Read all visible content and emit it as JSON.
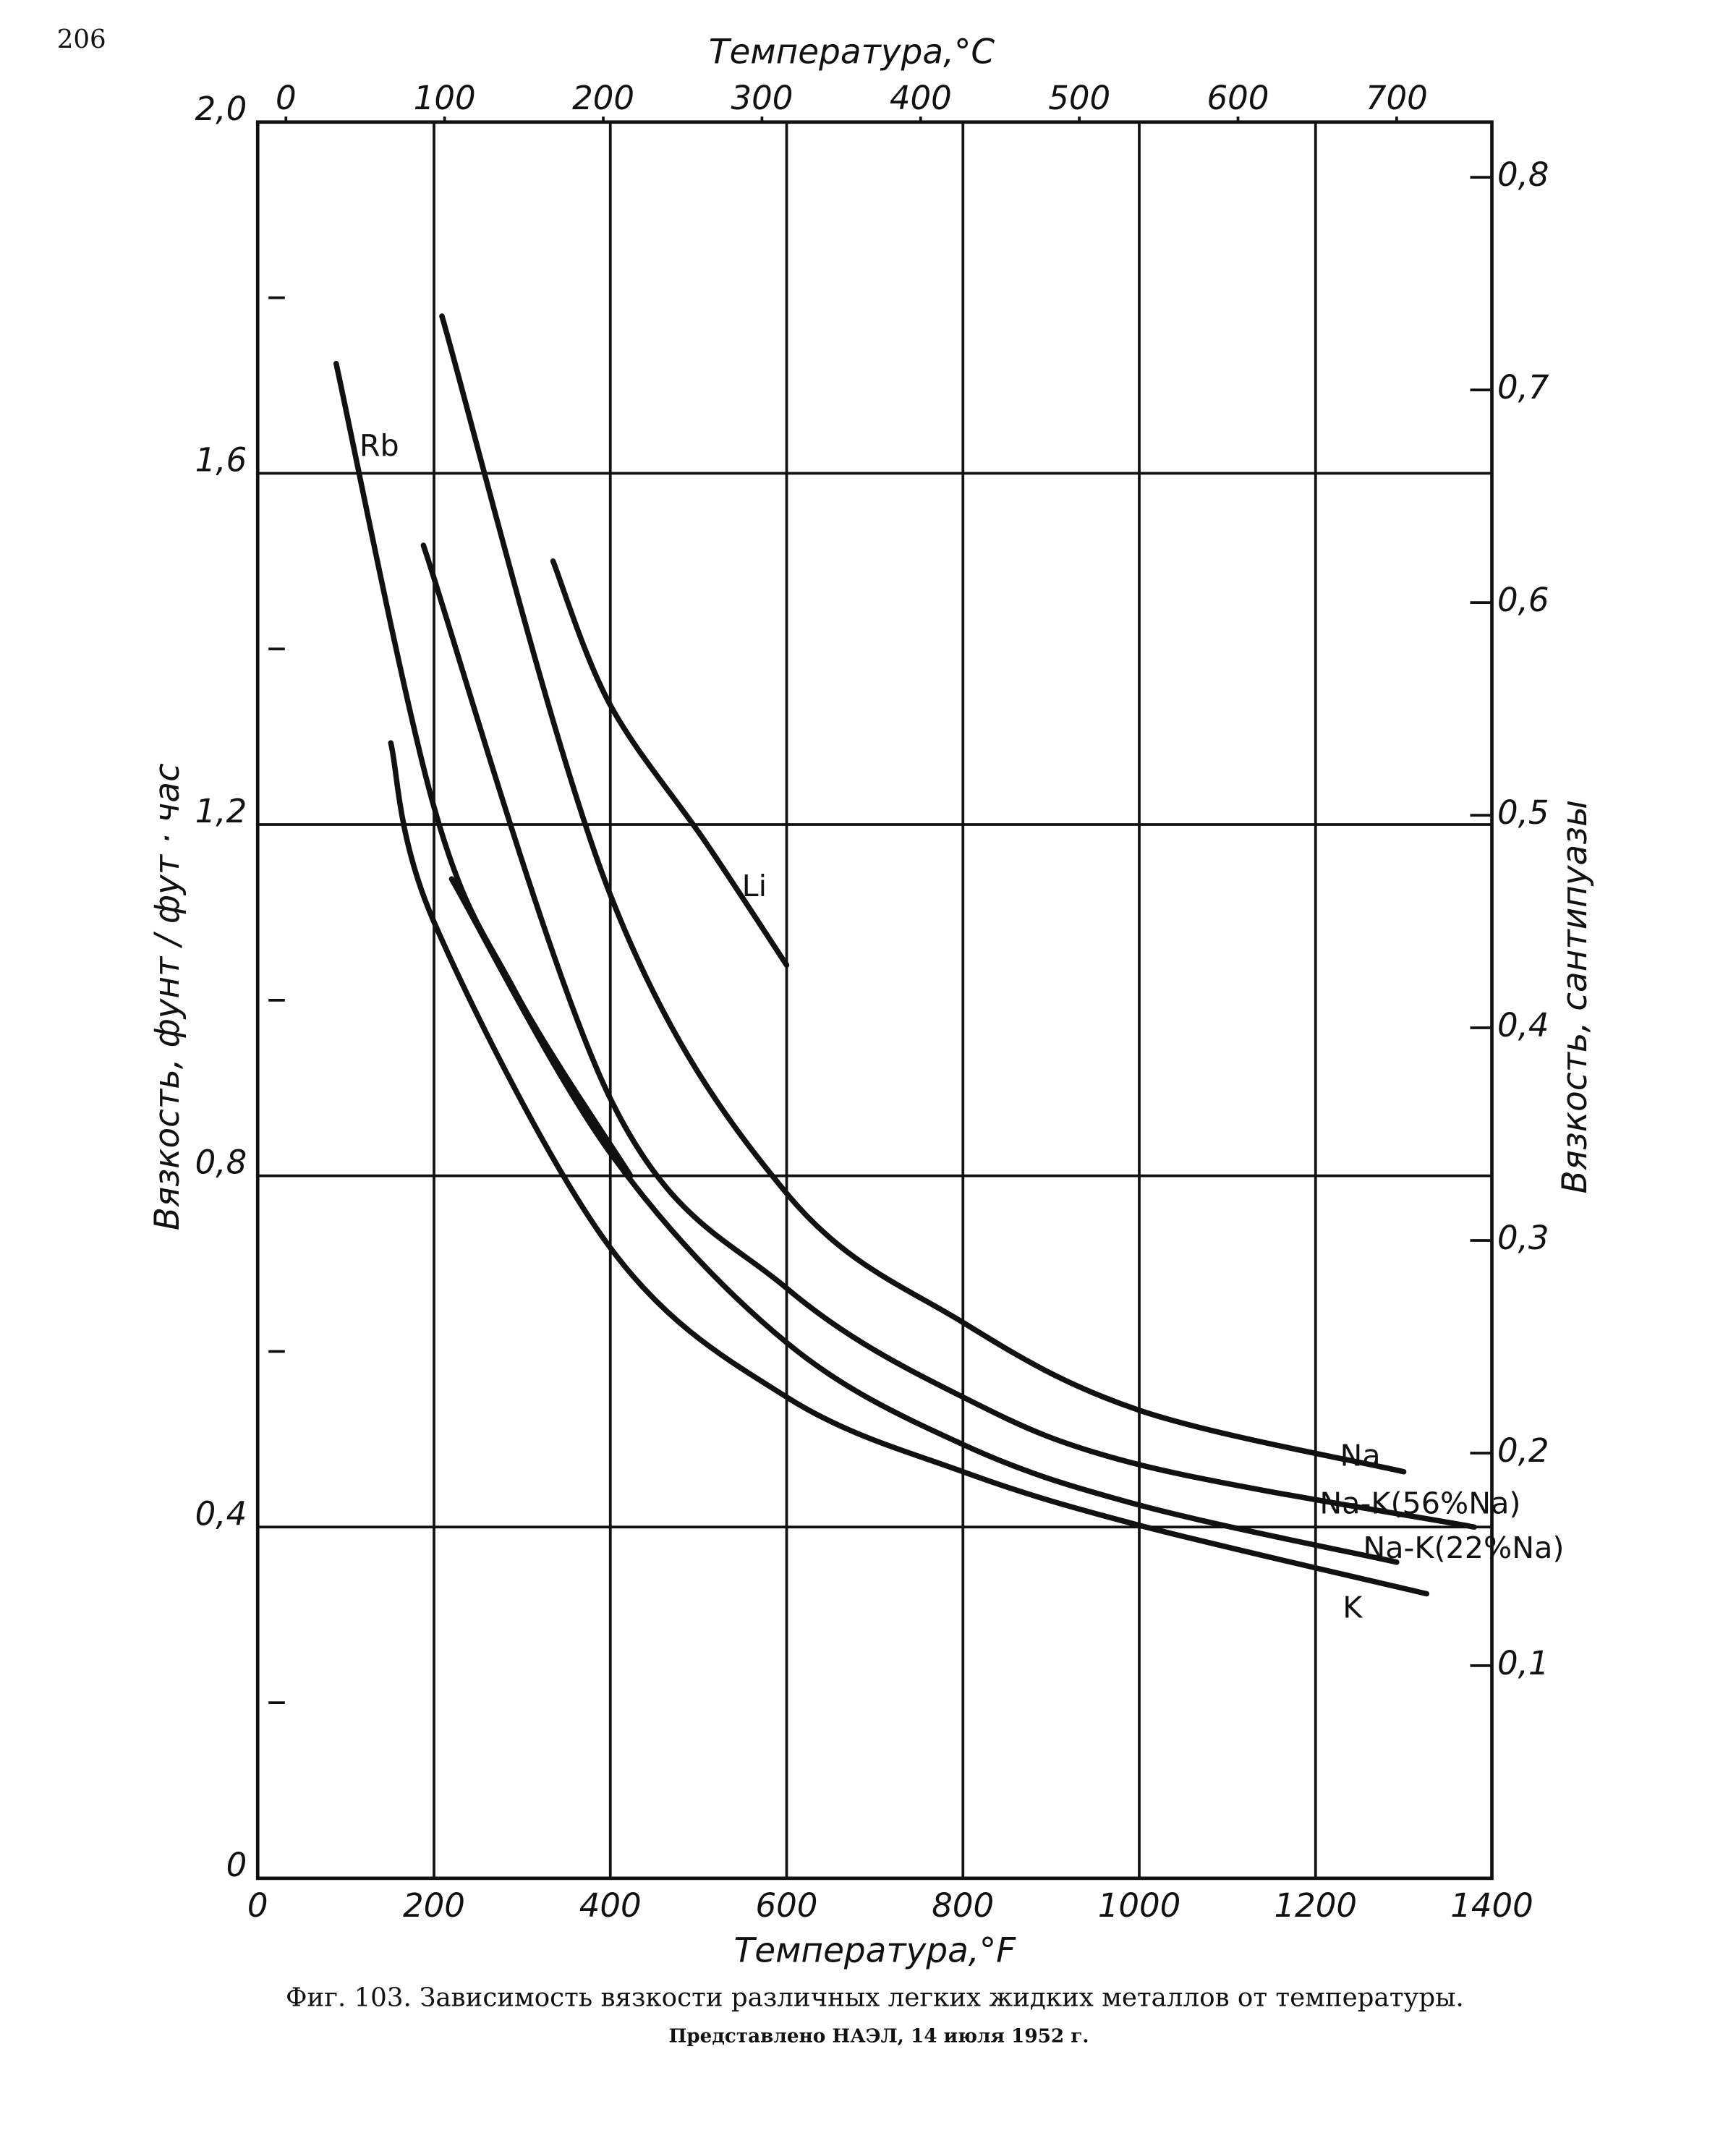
{
  "page_number": "206",
  "chart_data": {
    "type": "line",
    "x2_label": "Температура,°C",
    "x_label": "Температура,°F",
    "y_label": "Вязкость, фунт / фут · час",
    "y2_label": "Вязкость, сантипуазы",
    "caption": "Фиг. 103. Зависимость вязкости различных легких жидких металлов от температуры.",
    "note": "Представлено НАЭЛ, 14 июля 1952 г.",
    "xlim": [
      0,
      1400
    ],
    "xticks": [
      0,
      200,
      400,
      600,
      800,
      1000,
      1200,
      1400
    ],
    "x2lim": [
      -17.8,
      760
    ],
    "x2ticks": [
      0,
      100,
      200,
      300,
      400,
      500,
      600,
      700
    ],
    "ylim": [
      0,
      2.0
    ],
    "yticks": [
      0,
      {
        "value": 0.4,
        "label": "0,4"
      },
      {
        "value": 0.8,
        "label": "0,8"
      },
      {
        "value": 1.2,
        "label": "1,2"
      },
      {
        "value": 1.6,
        "label": "1,6"
      },
      {
        "value": 2.0,
        "label": "2,0"
      }
    ],
    "yminorticks": [
      0.2,
      0.6,
      1.0,
      1.4,
      1.8
    ],
    "y2lim": [
      0,
      0.826
    ],
    "y2ticks": [
      {
        "value": 0.1,
        "label": "0,1"
      },
      {
        "value": 0.2,
        "label": "0,2"
      },
      {
        "value": 0.3,
        "label": "0,3"
      },
      {
        "value": 0.4,
        "label": "0,4"
      },
      {
        "value": 0.5,
        "label": "0,5"
      },
      {
        "value": 0.6,
        "label": "0,6"
      },
      {
        "value": 0.7,
        "label": "0,7"
      },
      {
        "value": 0.8,
        "label": "0,8"
      }
    ],
    "grid": true,
    "series": [
      {
        "name": "Rb",
        "color": "#111111",
        "x": [
          89,
          200,
          292,
          423
        ],
        "values": [
          1.725,
          1.22,
          1.01,
          0.8
        ]
      },
      {
        "name": "Li",
        "color": "#111111",
        "x": [
          335,
          400,
          508,
          600
        ],
        "values": [
          1.5,
          1.336,
          1.18,
          1.04
        ]
      },
      {
        "name": "Na",
        "color": "#111111",
        "x": [
          209,
          400,
          600,
          800,
          1000,
          1300
        ],
        "values": [
          1.779,
          1.12,
          0.78,
          0.633,
          0.533,
          0.463
        ]
      },
      {
        "name": "Na-K(56%Na)",
        "color": "#111111",
        "x": [
          188,
          400,
          600,
          800,
          1000,
          1380
        ],
        "values": [
          1.518,
          0.888,
          0.672,
          0.548,
          0.471,
          0.4
        ]
      },
      {
        "name": "Na-K(22%Na)",
        "color": "#111111",
        "x": [
          220,
          400,
          600,
          800,
          1000,
          1292
        ],
        "values": [
          1.138,
          0.826,
          0.61,
          0.494,
          0.425,
          0.36
        ]
      },
      {
        "name": "K",
        "color": "#111111",
        "x": [
          151,
          200,
          400,
          600,
          800,
          1000,
          1326
        ],
        "values": [
          1.293,
          1.089,
          0.718,
          0.548,
          0.463,
          0.402,
          0.324
        ]
      }
    ]
  }
}
